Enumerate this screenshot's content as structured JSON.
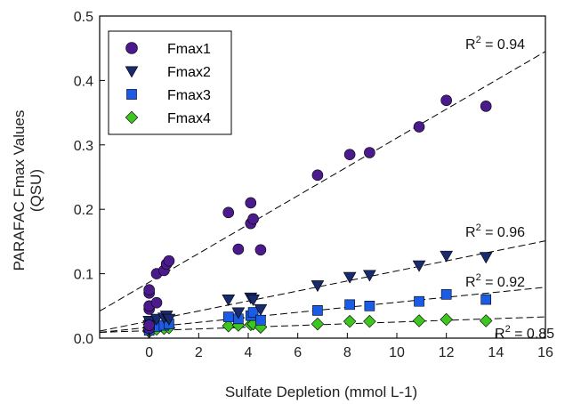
{
  "chart_data": {
    "type": "scatter",
    "title": "",
    "xlabel": "Sulfate Depletion (mmol L-1)",
    "ylabel_line1": "PARAFAC Fmax Values",
    "ylabel_line2": "(QSU)",
    "xlim": [
      -2,
      16
    ],
    "ylim": [
      0,
      0.5
    ],
    "xticks": [
      0,
      2,
      4,
      6,
      8,
      10,
      12,
      14,
      16
    ],
    "yticks": [
      0.0,
      0.1,
      0.2,
      0.3,
      0.4,
      0.5
    ],
    "ytick_labels": [
      "0.0",
      "0.1",
      "0.2",
      "0.3",
      "0.4",
      "0.5"
    ],
    "grid": false,
    "legend_position": "top-left",
    "series": [
      {
        "name": "Fmax1",
        "marker": "circle",
        "color": "#4b1a8c",
        "x": [
          0,
          0,
          0,
          0,
          0,
          0,
          0.3,
          0.3,
          0.6,
          0.7,
          0.8,
          3.2,
          3.6,
          4.1,
          4.1,
          4.2,
          4.5,
          6.8,
          8.1,
          8.9,
          10.9,
          12.0,
          13.6
        ],
        "y": [
          0.015,
          0.02,
          0.045,
          0.05,
          0.07,
          0.075,
          0.055,
          0.1,
          0.105,
          0.115,
          0.12,
          0.195,
          0.138,
          0.21,
          0.178,
          0.185,
          0.137,
          0.253,
          0.285,
          0.288,
          0.328,
          0.369,
          0.36
        ],
        "trend": {
          "x": [
            -2,
            16
          ],
          "y": [
            0.042,
            0.445
          ]
        },
        "r2_label": "= 0.94"
      },
      {
        "name": "Fmax2",
        "marker": "triangle-down",
        "color": "#1a2a6e",
        "x": [
          0,
          0,
          0,
          0.3,
          0.6,
          0.7,
          0.8,
          3.2,
          3.6,
          4.1,
          4.2,
          4.5,
          6.8,
          8.1,
          8.9,
          10.9,
          12.0,
          13.6
        ],
        "y": [
          0.015,
          0.02,
          0.027,
          0.03,
          0.032,
          0.035,
          0.03,
          0.06,
          0.04,
          0.063,
          0.06,
          0.045,
          0.082,
          0.095,
          0.098,
          0.113,
          0.128,
          0.126
        ],
        "trend": {
          "x": [
            -2,
            16
          ],
          "y": [
            0.011,
            0.151
          ]
        },
        "r2_label": "= 0.96"
      },
      {
        "name": "Fmax3",
        "marker": "square",
        "color": "#1a5ce6",
        "x": [
          0,
          0,
          0,
          0.3,
          0.6,
          0.8,
          3.2,
          3.6,
          4.1,
          4.2,
          4.5,
          6.8,
          8.1,
          8.9,
          10.9,
          12.0,
          13.6
        ],
        "y": [
          0.012,
          0.017,
          0.022,
          0.018,
          0.02,
          0.022,
          0.033,
          0.03,
          0.035,
          0.04,
          0.028,
          0.043,
          0.052,
          0.05,
          0.057,
          0.068,
          0.06
        ],
        "trend": {
          "x": [
            -2,
            16
          ],
          "y": [
            0.009,
            0.079
          ]
        },
        "r2_label": "= 0.92"
      },
      {
        "name": "Fmax4",
        "marker": "diamond",
        "color": "#3cc61f",
        "x": [
          0,
          0,
          0,
          0.3,
          0.6,
          0.8,
          3.2,
          3.6,
          4.1,
          4.2,
          4.5,
          6.8,
          8.1,
          8.9,
          10.9,
          12.0,
          13.6
        ],
        "y": [
          0.01,
          0.013,
          0.017,
          0.014,
          0.015,
          0.016,
          0.019,
          0.02,
          0.021,
          0.022,
          0.017,
          0.022,
          0.026,
          0.026,
          0.027,
          0.029,
          0.027
        ],
        "trend": {
          "x": [
            -2,
            16
          ],
          "y": [
            0.009,
            0.033
          ]
        },
        "r2_label": "= 0.85"
      }
    ]
  }
}
